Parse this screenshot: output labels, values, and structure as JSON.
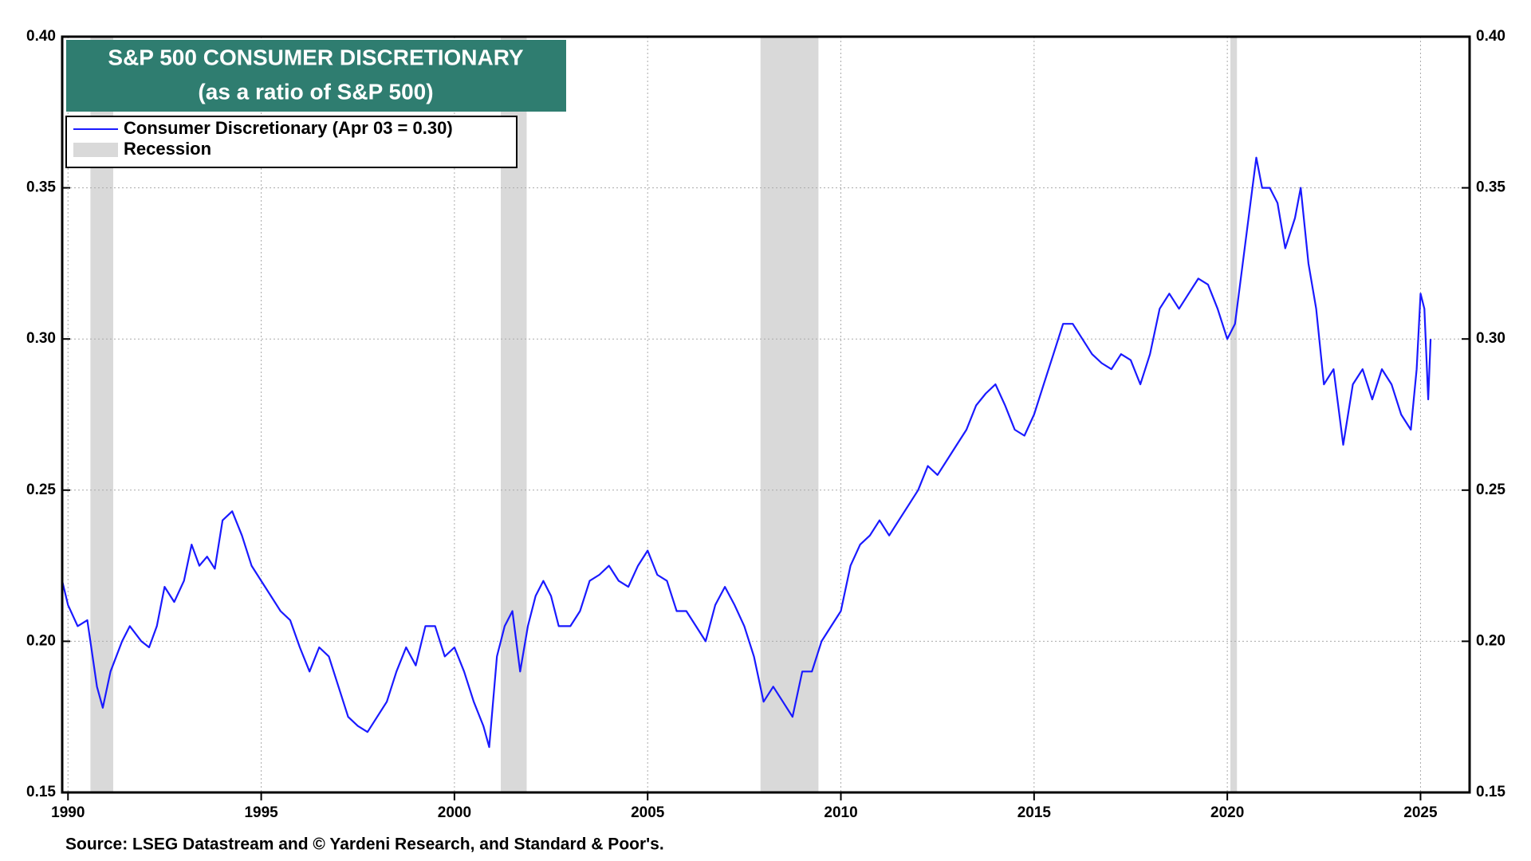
{
  "chart_data": {
    "type": "line",
    "title": "S&P 500 CONSUMER DISCRETIONARY",
    "subtitle": "(as a ratio of S&P 500)",
    "source": "Source: LSEG Datastream and © Yardeni Research, and Standard & Poor's.",
    "xlim": [
      1989.85,
      2026.27
    ],
    "xticks": [
      1990,
      1995,
      2000,
      2005,
      2010,
      2015,
      2020,
      2025
    ],
    "ylim": [
      0.15,
      0.4
    ],
    "yticks": [
      {
        "value": 0.15,
        "label": "0.15"
      },
      {
        "value": 0.2,
        "label": "0.20"
      },
      {
        "value": 0.25,
        "label": "0.25"
      },
      {
        "value": 0.3,
        "label": "0.30"
      },
      {
        "value": 0.35,
        "label": "0.35"
      },
      {
        "value": 0.4,
        "label": "0.40"
      }
    ],
    "grid": true,
    "legend": "upper left",
    "recession_name": "Recession",
    "recession_color": "#d9d9d9",
    "recessions": [
      [
        1990.58,
        1991.17
      ],
      [
        2001.2,
        2001.87
      ],
      [
        2007.92,
        2009.42
      ],
      [
        2020.08,
        2020.25
      ]
    ],
    "series": [
      {
        "name": "Consumer Discretionary (Apr 03 = 0.30)",
        "color": "#1a1aff",
        "x": [
          1989.85,
          1990.0,
          1990.25,
          1990.5,
          1990.75,
          1990.9,
          1991.1,
          1991.4,
          1991.6,
          1991.9,
          1992.1,
          1992.3,
          1992.5,
          1992.75,
          1993.0,
          1993.2,
          1993.4,
          1993.6,
          1993.8,
          1994.0,
          1994.25,
          1994.5,
          1994.75,
          1995.0,
          1995.25,
          1995.5,
          1995.75,
          1996.0,
          1996.25,
          1996.5,
          1996.75,
          1997.0,
          1997.25,
          1997.5,
          1997.75,
          1998.0,
          1998.25,
          1998.5,
          1998.75,
          1999.0,
          1999.25,
          1999.5,
          1999.75,
          2000.0,
          2000.25,
          2000.5,
          2000.75,
          2000.9,
          2001.1,
          2001.3,
          2001.5,
          2001.7,
          2001.9,
          2002.1,
          2002.3,
          2002.5,
          2002.7,
          2003.0,
          2003.25,
          2003.5,
          2003.75,
          2004.0,
          2004.25,
          2004.5,
          2004.75,
          2005.0,
          2005.25,
          2005.5,
          2005.75,
          2006.0,
          2006.25,
          2006.5,
          2006.75,
          2007.0,
          2007.25,
          2007.5,
          2007.75,
          2008.0,
          2008.25,
          2008.5,
          2008.75,
          2009.0,
          2009.25,
          2009.5,
          2009.75,
          2010.0,
          2010.25,
          2010.5,
          2010.75,
          2011.0,
          2011.25,
          2011.5,
          2011.75,
          2012.0,
          2012.25,
          2012.5,
          2012.75,
          2013.0,
          2013.25,
          2013.5,
          2013.75,
          2014.0,
          2014.25,
          2014.5,
          2014.75,
          2015.0,
          2015.25,
          2015.5,
          2015.75,
          2016.0,
          2016.25,
          2016.5,
          2016.75,
          2017.0,
          2017.25,
          2017.5,
          2017.75,
          2018.0,
          2018.25,
          2018.5,
          2018.75,
          2019.0,
          2019.25,
          2019.5,
          2019.75,
          2020.0,
          2020.2,
          2020.4,
          2020.6,
          2020.75,
          2020.9,
          2021.1,
          2021.3,
          2021.5,
          2021.75,
          2021.9,
          2022.1,
          2022.3,
          2022.5,
          2022.75,
          2023.0,
          2023.25,
          2023.5,
          2023.75,
          2024.0,
          2024.25,
          2024.5,
          2024.75,
          2024.9,
          2025.0,
          2025.1,
          2025.2,
          2025.26
        ],
        "values": [
          0.22,
          0.212,
          0.205,
          0.207,
          0.185,
          0.178,
          0.19,
          0.2,
          0.205,
          0.2,
          0.198,
          0.205,
          0.218,
          0.213,
          0.22,
          0.232,
          0.225,
          0.228,
          0.224,
          0.24,
          0.243,
          0.235,
          0.225,
          0.22,
          0.215,
          0.21,
          0.207,
          0.198,
          0.19,
          0.198,
          0.195,
          0.185,
          0.175,
          0.172,
          0.17,
          0.175,
          0.18,
          0.19,
          0.198,
          0.192,
          0.205,
          0.205,
          0.195,
          0.198,
          0.19,
          0.18,
          0.172,
          0.165,
          0.195,
          0.205,
          0.21,
          0.19,
          0.205,
          0.215,
          0.22,
          0.215,
          0.205,
          0.205,
          0.21,
          0.22,
          0.222,
          0.225,
          0.22,
          0.218,
          0.225,
          0.23,
          0.222,
          0.22,
          0.21,
          0.21,
          0.205,
          0.2,
          0.212,
          0.218,
          0.212,
          0.205,
          0.195,
          0.18,
          0.185,
          0.18,
          0.175,
          0.19,
          0.19,
          0.2,
          0.205,
          0.21,
          0.225,
          0.232,
          0.235,
          0.24,
          0.235,
          0.24,
          0.245,
          0.25,
          0.258,
          0.255,
          0.26,
          0.265,
          0.27,
          0.278,
          0.282,
          0.285,
          0.278,
          0.27,
          0.268,
          0.275,
          0.285,
          0.295,
          0.305,
          0.305,
          0.3,
          0.295,
          0.292,
          0.29,
          0.295,
          0.293,
          0.285,
          0.295,
          0.31,
          0.315,
          0.31,
          0.315,
          0.32,
          0.318,
          0.31,
          0.3,
          0.305,
          0.325,
          0.345,
          0.36,
          0.35,
          0.35,
          0.345,
          0.33,
          0.34,
          0.35,
          0.325,
          0.31,
          0.285,
          0.29,
          0.265,
          0.285,
          0.29,
          0.28,
          0.29,
          0.285,
          0.275,
          0.27,
          0.29,
          0.315,
          0.31,
          0.28,
          0.3
        ]
      }
    ]
  }
}
